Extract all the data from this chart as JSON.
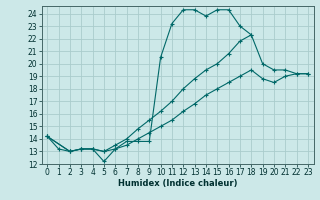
{
  "xlabel": "Humidex (Indice chaleur)",
  "bg_color": "#cce8e8",
  "grid_color": "#aacccc",
  "line_color": "#006868",
  "xlim": [
    -0.5,
    23.5
  ],
  "ylim": [
    12,
    24.6
  ],
  "yticks": [
    12,
    13,
    14,
    15,
    16,
    17,
    18,
    19,
    20,
    21,
    22,
    23,
    24
  ],
  "xticks": [
    0,
    1,
    2,
    3,
    4,
    5,
    6,
    7,
    8,
    9,
    10,
    11,
    12,
    13,
    14,
    15,
    16,
    17,
    18,
    19,
    20,
    21,
    22,
    23
  ],
  "curves": [
    {
      "x": [
        0,
        1,
        2,
        3,
        4,
        5,
        6,
        7,
        8,
        9,
        10,
        11,
        12,
        13,
        14,
        15,
        16,
        17,
        18
      ],
      "y": [
        14.2,
        13.2,
        13.0,
        13.2,
        13.2,
        12.2,
        13.2,
        13.8,
        13.8,
        13.8,
        20.5,
        23.2,
        24.3,
        24.3,
        23.8,
        24.3,
        24.3,
        23.0,
        22.3
      ]
    },
    {
      "x": [
        0,
        2,
        3,
        4,
        5,
        6,
        7,
        8,
        9,
        10,
        11,
        12,
        13,
        14,
        15,
        16,
        17,
        18,
        19,
        20,
        21,
        22,
        23
      ],
      "y": [
        14.2,
        13.0,
        13.2,
        13.2,
        13.0,
        13.5,
        14.0,
        14.8,
        15.5,
        16.2,
        17.0,
        18.0,
        18.8,
        19.5,
        20.0,
        20.8,
        21.8,
        22.3,
        20.0,
        19.5,
        19.5,
        19.2,
        19.2
      ]
    },
    {
      "x": [
        0,
        2,
        3,
        4,
        5,
        6,
        7,
        8,
        9,
        10,
        11,
        12,
        13,
        14,
        15,
        16,
        17,
        18,
        19,
        20,
        21,
        22,
        23
      ],
      "y": [
        14.2,
        13.0,
        13.2,
        13.2,
        13.0,
        13.2,
        13.5,
        14.0,
        14.5,
        15.0,
        15.5,
        16.2,
        16.8,
        17.5,
        18.0,
        18.5,
        19.0,
        19.5,
        18.8,
        18.5,
        19.0,
        19.2,
        19.2
      ]
    }
  ]
}
